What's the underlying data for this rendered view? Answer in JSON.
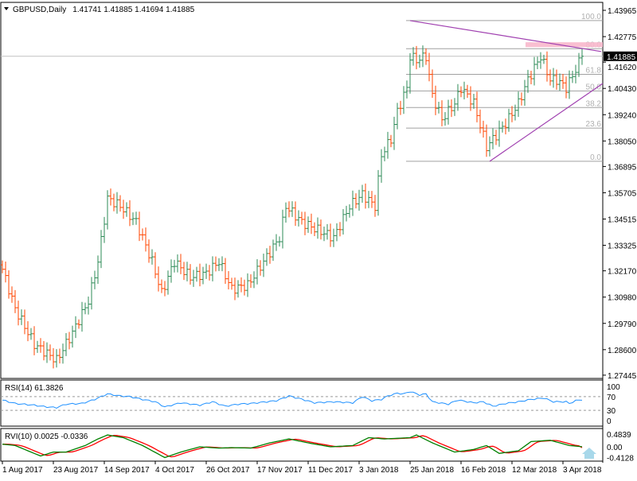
{
  "header": {
    "symbol": "GBPUSD,Daily",
    "ohlc": "1.41741 1.41885 1.41694 1.41885",
    "menu_icon": "triangle-down-icon"
  },
  "colors": {
    "bull": "#2e8b57",
    "bear": "#ff4500",
    "trendline": "#a040b0",
    "zone": "#f8b8cc",
    "rsi": "#1e90ff",
    "rvi_main": "#008000",
    "rvi_signal": "#ff0000",
    "fibo": "#a0a0a0",
    "arrow": "#a8d8ea"
  },
  "chart_data": [
    {
      "type": "ohlc",
      "title": "GBPUSD,Daily",
      "ylim": [
        1.27445,
        1.43965
      ],
      "yticks": [
        "1.43965",
        "1.42775",
        "1.41620",
        "1.40430",
        "1.39240",
        "1.38050",
        "1.36895",
        "1.35705",
        "1.34515",
        "1.33325",
        "1.32170",
        "1.30980",
        "1.29790",
        "1.28600",
        "1.27445"
      ],
      "current_price": "1.41885",
      "xticks": [
        "1 Aug 2017",
        "23 Aug 2017",
        "14 Sep 2017",
        "4 Oct 2017",
        "26 Oct 2017",
        "17 Nov 2017",
        "11 Dec 2017",
        "3 Jan 2018",
        "25 Jan 2018",
        "16 Feb 2018",
        "12 Mar 2018",
        "3 Apr 2018"
      ],
      "close_samples": [
        [
          0,
          1.3224
        ],
        [
          4,
          1.3045
        ],
        [
          10,
          1.2884
        ],
        [
          17,
          1.2812
        ],
        [
          22,
          1.2937
        ],
        [
          27,
          1.3081
        ],
        [
          30,
          1.3259
        ],
        [
          33,
          1.3545
        ],
        [
          37,
          1.351
        ],
        [
          42,
          1.3438
        ],
        [
          47,
          1.3259
        ],
        [
          50,
          1.3116
        ],
        [
          54,
          1.3259
        ],
        [
          59,
          1.3188
        ],
        [
          64,
          1.3206
        ],
        [
          68,
          1.3259
        ],
        [
          72,
          1.3134
        ],
        [
          77,
          1.3152
        ],
        [
          82,
          1.3259
        ],
        [
          87,
          1.3367
        ],
        [
          89,
          1.351
        ],
        [
          94,
          1.3438
        ],
        [
          99,
          1.3402
        ],
        [
          104,
          1.3367
        ],
        [
          109,
          1.351
        ],
        [
          113,
          1.3563
        ],
        [
          117,
          1.351
        ],
        [
          119,
          1.3742
        ],
        [
          122,
          1.3814
        ],
        [
          124,
          1.3939
        ],
        [
          127,
          1.4046
        ],
        [
          128,
          1.4189
        ],
        [
          130,
          1.4171
        ],
        [
          133,
          1.4189
        ],
        [
          135,
          1.401
        ],
        [
          138,
          1.3903
        ],
        [
          142,
          1.3975
        ],
        [
          144,
          1.4046
        ],
        [
          148,
          1.3975
        ],
        [
          152,
          1.3778
        ],
        [
          154,
          1.3814
        ],
        [
          158,
          1.3885
        ],
        [
          162,
          1.3975
        ],
        [
          165,
          1.4082
        ],
        [
          169,
          1.4189
        ],
        [
          172,
          1.4082
        ],
        [
          174,
          1.4082
        ],
        [
          177,
          1.4046
        ],
        [
          179,
          1.41
        ],
        [
          182,
          1.41885
        ]
      ],
      "fibonacci": {
        "high": 1.435,
        "low": 1.3713,
        "levels": [
          "100.0",
          "80.0",
          "61.8",
          "50.0",
          "38.2",
          "23.6",
          "0.0"
        ]
      },
      "trendlines": [
        {
          "from": [
            128,
            1.435
          ],
          "to": [
            188,
            1.421
          ]
        },
        {
          "from": [
            153,
            1.3713
          ],
          "to": [
            191,
            1.409
          ]
        }
      ],
      "resistance_zone": [
        1.423,
        1.4252
      ]
    },
    {
      "type": "line",
      "label": "RSI(14) 61.3826",
      "ylim": [
        0,
        100
      ],
      "yticks": [
        "100",
        "70",
        "30",
        "0"
      ],
      "levels": [
        70,
        30
      ],
      "samples": [
        [
          0,
          60
        ],
        [
          4,
          50
        ],
        [
          10,
          45
        ],
        [
          14,
          40
        ],
        [
          17,
          38
        ],
        [
          20,
          48
        ],
        [
          25,
          50
        ],
        [
          29,
          62
        ],
        [
          33,
          78
        ],
        [
          37,
          72
        ],
        [
          40,
          70
        ],
        [
          44,
          62
        ],
        [
          48,
          55
        ],
        [
          51,
          40
        ],
        [
          56,
          52
        ],
        [
          62,
          45
        ],
        [
          66,
          55
        ],
        [
          70,
          42
        ],
        [
          74,
          48
        ],
        [
          78,
          50
        ],
        [
          86,
          58
        ],
        [
          90,
          72
        ],
        [
          95,
          60
        ],
        [
          98,
          52
        ],
        [
          104,
          55
        ],
        [
          110,
          52
        ],
        [
          113,
          70
        ],
        [
          116,
          58
        ],
        [
          119,
          62
        ],
        [
          121,
          72
        ],
        [
          124,
          80
        ],
        [
          126,
          78
        ],
        [
          128,
          85
        ],
        [
          131,
          75
        ],
        [
          133,
          78
        ],
        [
          135,
          55
        ],
        [
          140,
          48
        ],
        [
          143,
          60
        ],
        [
          148,
          52
        ],
        [
          151,
          55
        ],
        [
          154,
          42
        ],
        [
          158,
          50
        ],
        [
          162,
          55
        ],
        [
          166,
          62
        ],
        [
          170,
          66
        ],
        [
          173,
          55
        ],
        [
          177,
          55
        ],
        [
          178,
          50
        ],
        [
          180,
          58
        ],
        [
          182,
          61.38
        ]
      ]
    },
    {
      "type": "line",
      "label": "RVI(10) 0.0025 -0.0336",
      "ylim": [
        -0.4128,
        0.4839
      ],
      "yticks": [
        "0.4839",
        "0.00",
        "-0.4128"
      ],
      "main_samples": [
        [
          0,
          0.1
        ],
        [
          4,
          0.05
        ],
        [
          8,
          -0.15
        ],
        [
          12,
          -0.35
        ],
        [
          16,
          -0.2
        ],
        [
          20,
          -0.2
        ],
        [
          26,
          0.05
        ],
        [
          30,
          0.3
        ],
        [
          33,
          0.45
        ],
        [
          38,
          0.35
        ],
        [
          44,
          0.05
        ],
        [
          51,
          -0.41
        ],
        [
          56,
          -0.2
        ],
        [
          62,
          0.0
        ],
        [
          68,
          -0.05
        ],
        [
          72,
          -0.03
        ],
        [
          78,
          -0.05
        ],
        [
          84,
          0.15
        ],
        [
          90,
          0.3
        ],
        [
          96,
          0.15
        ],
        [
          103,
          0.0
        ],
        [
          110,
          0.05
        ],
        [
          115,
          0.35
        ],
        [
          120,
          0.3
        ],
        [
          128,
          0.35
        ],
        [
          130,
          0.45
        ],
        [
          135,
          0.15
        ],
        [
          142,
          -0.2
        ],
        [
          148,
          -0.1
        ],
        [
          152,
          0.05
        ],
        [
          156,
          -0.25
        ],
        [
          162,
          -0.15
        ],
        [
          166,
          0.2
        ],
        [
          172,
          0.25
        ],
        [
          178,
          0.05
        ],
        [
          182,
          0.0025
        ]
      ],
      "signal_last": -0.0336
    }
  ]
}
